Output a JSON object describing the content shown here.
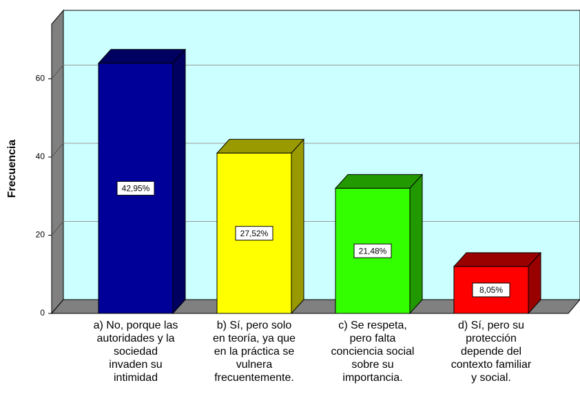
{
  "chart_data": {
    "type": "bar3d",
    "y_label": "Frecuencia",
    "categories": [
      "a) No, porque las\nautoridades y la\nsociedad\ninvaden su\nintimidad",
      "b) Sí, pero solo\nen teoría, ya que\nen la práctica se\nvulnera\nfrecuentemente.",
      "c) Se respeta,\npero falta\nconciencia social\nsobre su\nimportancia.",
      "d) Sí, pero su\nprotección\ndepende del\ncontexto familiar\ny social."
    ],
    "values": [
      64,
      41,
      32,
      12
    ],
    "percentages": [
      42.95,
      27.52,
      21.48,
      8.05
    ],
    "percentage_labels": [
      "42,95%",
      "27,52%",
      "21,48%",
      "8,05%"
    ],
    "colors": [
      "#000099",
      "#ffff00",
      "#33ff00",
      "#ff0000"
    ],
    "side_colors": [
      "#000060",
      "#999900",
      "#229900",
      "#990000"
    ],
    "ylim": [
      0,
      74
    ],
    "yticks": [
      0,
      20,
      40,
      60
    ],
    "grid": true
  }
}
